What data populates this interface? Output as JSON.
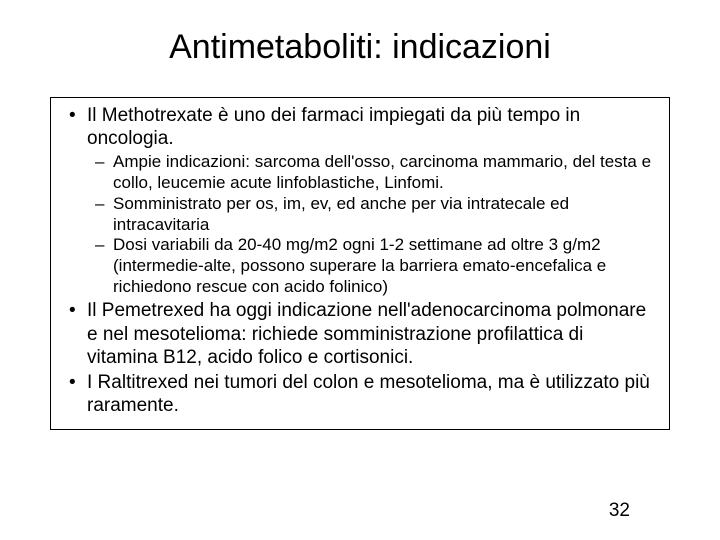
{
  "title": "Antimetaboliti: indicazioni",
  "bullets": {
    "b1": "Il Methotrexate è uno dei farmaci impiegati da più tempo in oncologia.",
    "b1s1": "Ampie indicazioni: sarcoma dell'osso, carcinoma mammario, del testa e collo, leucemie acute linfoblastiche, Linfomi.",
    "b1s2": "Somministrato per os, im, ev, ed anche per via intratecale ed intracavitaria",
    "b1s3": "Dosi variabili da 20-40 mg/m2 ogni 1-2 settimane ad oltre 3 g/m2 (intermedie-alte, possono superare la barriera emato-encefalica e richiedono rescue con acido folinico)",
    "b2": "Il Pemetrexed ha oggi indicazione nell'adenocarcinoma polmonare e nel mesotelioma:  richiede somministrazione profilattica di vitamina B12, acido folico e cortisonici.",
    "b3": "I Raltitrexed nei tumori del colon e mesotelioma, ma è utilizzato più raramente."
  },
  "pageNumber": "32"
}
